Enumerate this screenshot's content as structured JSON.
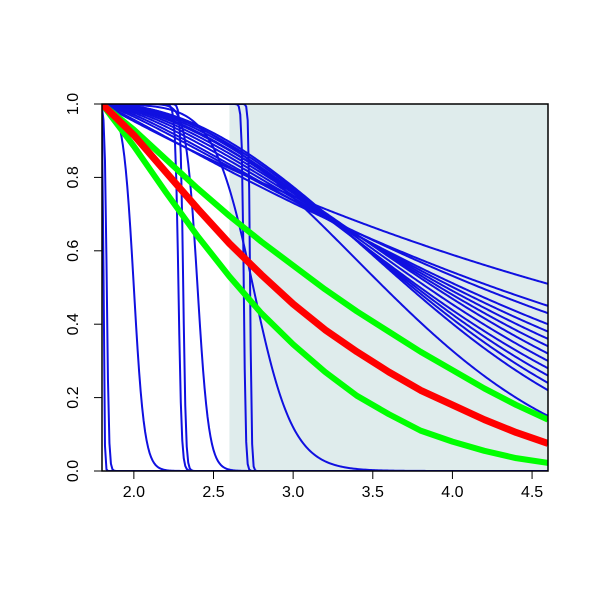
{
  "chart_data": {
    "type": "line",
    "title": "",
    "xlabel": "",
    "ylabel": "",
    "xlim": [
      1.8,
      4.6
    ],
    "ylim": [
      0.0,
      1.0
    ],
    "x_ticks": [
      2.0,
      2.5,
      3.0,
      3.5,
      4.0,
      4.5
    ],
    "x_tick_labels": [
      "2.0",
      "2.5",
      "3.0",
      "3.5",
      "4.0",
      "4.5"
    ],
    "y_ticks": [
      0.0,
      0.2,
      0.4,
      0.6,
      0.8,
      1.0
    ],
    "y_tick_labels": [
      "0.0",
      "0.2",
      "0.4",
      "0.6",
      "0.8",
      "1.0"
    ],
    "grid": false,
    "legend": "none",
    "shaded_region": {
      "x_from": 2.6,
      "x_to": 4.6,
      "color": "#dfecec"
    },
    "series_colors": {
      "blue": "#1010e0",
      "red": "#ff0000",
      "green": "#00ff00"
    },
    "blue_series": [
      {
        "kind": "step",
        "cutoff": 1.81,
        "steep": 300
      },
      {
        "kind": "step",
        "cutoff": 1.83,
        "steep": 150
      },
      {
        "kind": "step",
        "cutoff": 2.0,
        "steep": 30
      },
      {
        "kind": "step",
        "cutoff": 2.28,
        "steep": 100
      },
      {
        "kind": "step",
        "cutoff": 2.31,
        "steep": 120
      },
      {
        "kind": "step",
        "cutoff": 2.4,
        "steep": 28
      },
      {
        "kind": "step",
        "cutoff": 2.69,
        "steep": 160
      },
      {
        "kind": "step",
        "cutoff": 2.73,
        "steep": 200
      },
      {
        "kind": "step",
        "cutoff": 2.75,
        "steep": 8
      },
      {
        "kind": "decay",
        "y_end": 0.51,
        "shape": 1.0
      },
      {
        "kind": "decay",
        "y_end": 0.45,
        "shape": 1.1
      },
      {
        "kind": "decay",
        "y_end": 0.43,
        "shape": 1.2
      },
      {
        "kind": "decay",
        "y_end": 0.4,
        "shape": 1.3
      },
      {
        "kind": "decay",
        "y_end": 0.38,
        "shape": 1.4
      },
      {
        "kind": "decay",
        "y_end": 0.36,
        "shape": 1.5
      },
      {
        "kind": "decay",
        "y_end": 0.34,
        "shape": 1.6
      },
      {
        "kind": "decay",
        "y_end": 0.32,
        "shape": 1.7
      },
      {
        "kind": "decay",
        "y_end": 0.3,
        "shape": 1.75
      },
      {
        "kind": "decay",
        "y_end": 0.28,
        "shape": 1.8
      },
      {
        "kind": "decay",
        "y_end": 0.26,
        "shape": 1.9
      },
      {
        "kind": "decay",
        "y_end": 0.24,
        "shape": 2.0
      },
      {
        "kind": "decay",
        "y_end": 0.22,
        "shape": 2.1
      },
      {
        "kind": "decay",
        "y_end": 0.15,
        "shape": 2.2
      }
    ],
    "red_series": {
      "x": [
        1.8,
        2.0,
        2.2,
        2.4,
        2.6,
        2.8,
        3.0,
        3.2,
        3.4,
        3.6,
        3.8,
        4.0,
        4.2,
        4.4,
        4.6
      ],
      "y": [
        1.0,
        0.915,
        0.815,
        0.715,
        0.62,
        0.535,
        0.455,
        0.385,
        0.325,
        0.27,
        0.22,
        0.18,
        0.14,
        0.105,
        0.075
      ]
    },
    "green_upper_series": {
      "x": [
        1.8,
        2.0,
        2.2,
        2.4,
        2.6,
        2.8,
        3.0,
        3.2,
        3.4,
        3.6,
        3.8,
        4.0,
        4.2,
        4.4,
        4.6
      ],
      "y": [
        1.0,
        0.93,
        0.85,
        0.77,
        0.695,
        0.625,
        0.56,
        0.495,
        0.435,
        0.38,
        0.325,
        0.275,
        0.225,
        0.18,
        0.14
      ]
    },
    "green_lower_series": {
      "x": [
        1.8,
        2.0,
        2.2,
        2.4,
        2.6,
        2.8,
        3.0,
        3.2,
        3.4,
        3.6,
        3.8,
        4.0,
        4.2,
        4.4,
        4.6
      ],
      "y": [
        1.0,
        0.885,
        0.76,
        0.64,
        0.53,
        0.43,
        0.345,
        0.27,
        0.205,
        0.155,
        0.11,
        0.08,
        0.055,
        0.035,
        0.022
      ]
    }
  }
}
